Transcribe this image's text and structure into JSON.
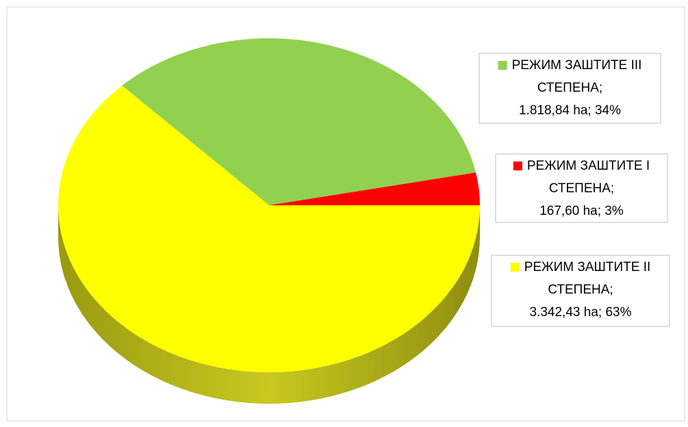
{
  "chart_data": {
    "type": "pie",
    "categories": [
      "РЕЖИМ ЗАШТИТЕ III СТЕПЕНА;",
      "РЕЖИМ ЗАШТИТЕ I СТЕПЕНА;",
      "РЕЖИМ ЗАШТИТЕ II СТЕПЕНА;"
    ],
    "values": [
      1818.84,
      167.6,
      3342.43
    ],
    "value_labels": [
      "1.818,84 ha; 34%",
      "167,60 ha; 3%",
      "3.342,43 ha; 63%"
    ],
    "colors": [
      "#92d050",
      "#ff0000",
      "#ffff00"
    ]
  }
}
